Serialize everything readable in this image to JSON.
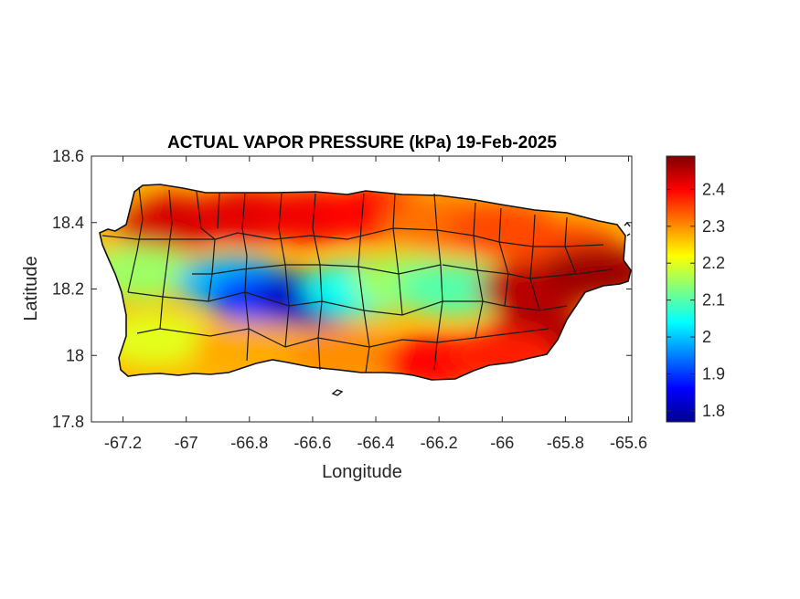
{
  "chart_data": {
    "type": "heatmap",
    "title": "ACTUAL VAPOR PRESSURE (kPa) 19-Feb-2025",
    "xlabel": "Longitude",
    "ylabel": "Latitude",
    "xlim": [
      -67.3,
      -65.59
    ],
    "ylim": [
      17.8,
      18.6
    ],
    "xticks": [
      -67.2,
      -67,
      -66.8,
      -66.6,
      -66.4,
      -66.2,
      -66,
      -65.8,
      -65.6
    ],
    "xtick_labels": [
      "-67.2",
      "-67",
      "-66.8",
      "-66.6",
      "-66.4",
      "-66.2",
      "-66",
      "-65.8",
      "-65.6"
    ],
    "yticks": [
      17.8,
      18,
      18.2,
      18.4,
      18.6
    ],
    "ytick_labels": [
      "17.8",
      "18",
      "18.2",
      "18.4",
      "18.6"
    ],
    "colorbar": {
      "colormap": "jet",
      "limits": [
        1.77,
        2.49
      ],
      "ticks": [
        1.8,
        1.9,
        2,
        2.1,
        2.2,
        2.3,
        2.4
      ],
      "tick_labels": [
        "1.8",
        "1.9",
        "2",
        "2.1",
        "2.2",
        "2.3",
        "2.4"
      ]
    },
    "field_samples": [
      {
        "lon": -67.2,
        "lat": 18.4,
        "value": 2.27
      },
      {
        "lon": -67.05,
        "lat": 18.4,
        "value": 2.43
      },
      {
        "lon": -66.8,
        "lat": 18.42,
        "value": 2.42
      },
      {
        "lon": -66.6,
        "lat": 18.42,
        "value": 2.41
      },
      {
        "lon": -66.4,
        "lat": 18.43,
        "value": 2.4
      },
      {
        "lon": -66.2,
        "lat": 18.4,
        "value": 2.32
      },
      {
        "lon": -66.0,
        "lat": 18.38,
        "value": 2.35
      },
      {
        "lon": -65.8,
        "lat": 18.32,
        "value": 2.35
      },
      {
        "lon": -67.15,
        "lat": 18.25,
        "value": 2.15
      },
      {
        "lon": -66.85,
        "lat": 18.22,
        "value": 1.99
      },
      {
        "lon": -66.75,
        "lat": 18.17,
        "value": 1.9
      },
      {
        "lon": -66.6,
        "lat": 18.17,
        "value": 1.82
      },
      {
        "lon": -66.45,
        "lat": 18.2,
        "value": 2.05
      },
      {
        "lon": -66.3,
        "lat": 18.22,
        "value": 2.15
      },
      {
        "lon": -66.15,
        "lat": 18.2,
        "value": 2.1
      },
      {
        "lon": -65.9,
        "lat": 18.2,
        "value": 2.45
      },
      {
        "lon": -65.7,
        "lat": 18.25,
        "value": 2.47
      },
      {
        "lon": -65.88,
        "lat": 18.05,
        "value": 2.46
      },
      {
        "lon": -67.1,
        "lat": 18.05,
        "value": 2.2
      },
      {
        "lon": -66.8,
        "lat": 18.02,
        "value": 2.28
      },
      {
        "lon": -66.5,
        "lat": 18.0,
        "value": 2.3
      },
      {
        "lon": -66.2,
        "lat": 17.98,
        "value": 2.4
      },
      {
        "lon": -66.0,
        "lat": 18.0,
        "value": 2.38
      }
    ]
  }
}
